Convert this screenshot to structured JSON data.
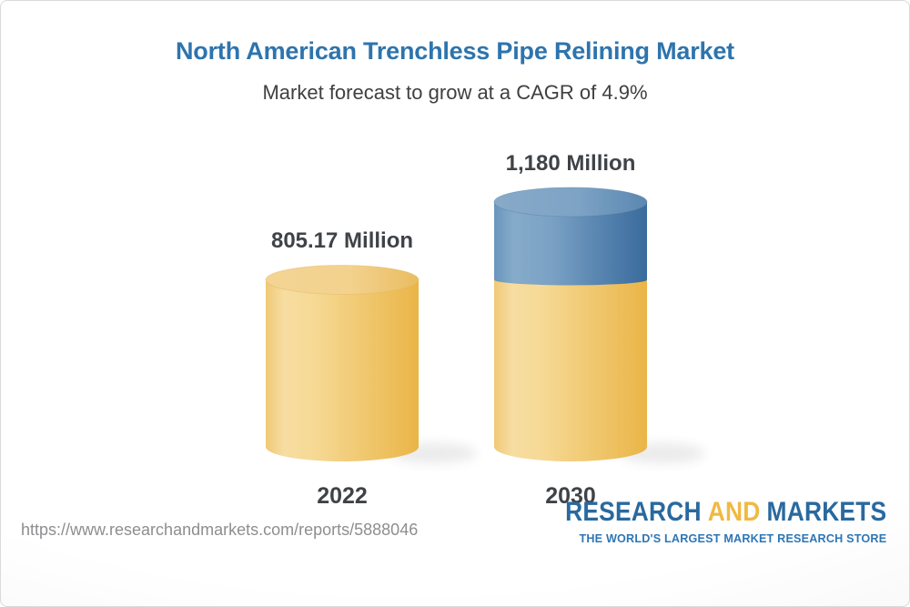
{
  "header": {
    "title": "North American Trenchless Pipe Relining Market",
    "subtitle": "Market forecast to grow at a CAGR of 4.9%"
  },
  "chart_data": {
    "type": "bar",
    "variant": "3d-stacked-cylinders",
    "title": "North American Trenchless Pipe Relining Market",
    "subtitle": "Market forecast to grow at a CAGR of 4.9%",
    "cagr_percent": 4.9,
    "unit": "Million",
    "categories": [
      "2022",
      "2030"
    ],
    "values": [
      805.17,
      1180
    ],
    "value_labels": [
      "805.17 Million",
      "1,180 Million"
    ],
    "series": [
      {
        "name": "2022 base value",
        "color": "#f2cc7e"
      },
      {
        "name": "growth to 2030",
        "color": "#5e8bb5"
      }
    ],
    "axes": "none",
    "legend": "none",
    "grid": false
  },
  "footer": {
    "url": "https://www.researchandmarkets.com/reports/5888046",
    "logo": {
      "word1": "RESEARCH",
      "word2": "AND",
      "word3": "MARKETS",
      "tagline": "THE WORLD'S LARGEST MARKET RESEARCH STORE",
      "brand_blue": "#29699f",
      "brand_gold": "#f0b942"
    }
  },
  "colors": {
    "title_blue": "#2e74ad",
    "text_dark": "#3f4347",
    "url_gray": "#8d8e90"
  }
}
